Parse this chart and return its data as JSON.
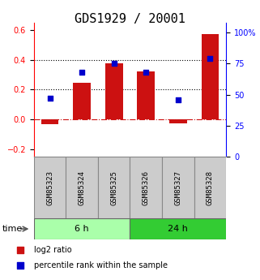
{
  "title": "GDS1929 / 20001",
  "samples": [
    "GSM85323",
    "GSM85324",
    "GSM85325",
    "GSM85326",
    "GSM85327",
    "GSM85328"
  ],
  "log2_ratio": [
    -0.03,
    0.245,
    0.375,
    0.32,
    -0.025,
    0.57
  ],
  "percentile_rank": [
    47,
    68,
    75,
    68,
    46,
    79
  ],
  "groups": [
    {
      "label": "6 h",
      "indices": [
        0,
        1,
        2
      ],
      "color": "#aaffaa"
    },
    {
      "label": "24 h",
      "indices": [
        3,
        4,
        5
      ],
      "color": "#33cc33"
    }
  ],
  "bar_color": "#cc1111",
  "dot_color": "#0000cc",
  "bar_width": 0.55,
  "ylim_left": [
    -0.25,
    0.65
  ],
  "ylim_right": [
    0,
    108
  ],
  "yticks_left": [
    -0.2,
    0.0,
    0.2,
    0.4,
    0.6
  ],
  "yticks_right": [
    0,
    25,
    50,
    75,
    100
  ],
  "hlines_dotted": [
    0.2,
    0.4
  ],
  "hline_dashed": 0.0,
  "bg_color": "#ffffff",
  "plot_bg_color": "#ffffff",
  "label_log2": "log2 ratio",
  "label_percentile": "percentile rank within the sample",
  "time_label": "time",
  "box_color": "#cccccc",
  "box_edge_color": "#888888",
  "title_fontsize": 11,
  "tick_fontsize": 7,
  "legend_fontsize": 7,
  "sample_fontsize": 6.5
}
